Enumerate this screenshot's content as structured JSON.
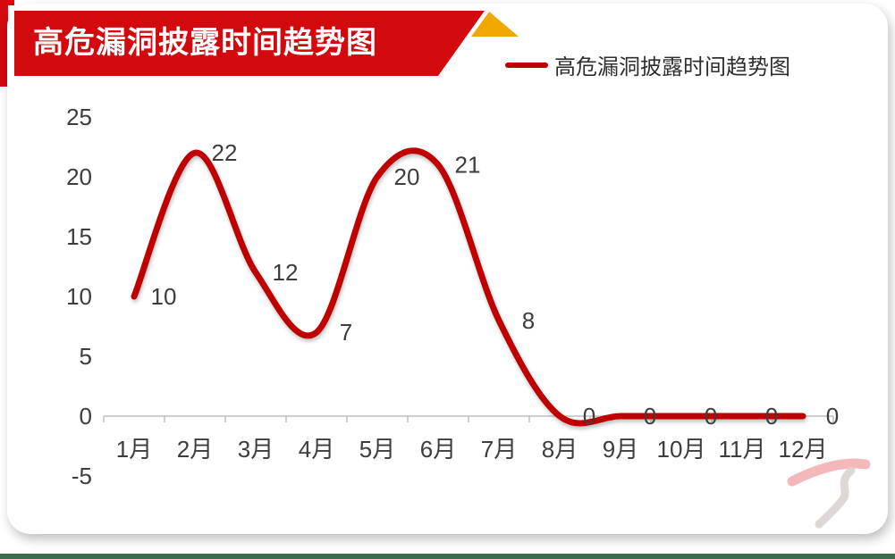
{
  "page": {
    "background": "#ffffff",
    "corner_accent_color": "#d20a0d",
    "footer_bar_color": "#3c6b4e"
  },
  "banner": {
    "title": "高危漏洞披露时间趋势图",
    "bg_color": "#d20a0d",
    "fold_color": "#f0a800",
    "text_color": "#ffffff"
  },
  "legend": {
    "swatch_color": "#c00000",
    "label": "高危漏洞披露时间趋势图"
  },
  "chart_data": {
    "type": "line",
    "title": "高危漏洞披露时间趋势图",
    "categories": [
      "1月",
      "2月",
      "3月",
      "4月",
      "5月",
      "6月",
      "7月",
      "8月",
      "9月",
      "10月",
      "11月",
      "12月"
    ],
    "series": [
      {
        "name": "高危漏洞披露时间趋势图",
        "values": [
          10,
          22,
          12,
          7,
          20,
          21,
          8,
          0,
          0,
          0,
          0,
          0
        ],
        "color": "#c00000"
      }
    ],
    "y_ticks": [
      25,
      20,
      15,
      10,
      5,
      0,
      -5
    ],
    "ylim": [
      -5,
      25
    ],
    "y_tick_step": 5,
    "xlabel": "",
    "ylabel": "",
    "smooth": true,
    "data_labels": true,
    "data_label_position": "right",
    "legend_position": "top",
    "grid": false,
    "axis_color": "#bfbfbf",
    "label_color": "#3d3d3d"
  },
  "watermark": {
    "swoosh_color": "#f3b0b4",
    "s_color": "#d9d4d0"
  }
}
